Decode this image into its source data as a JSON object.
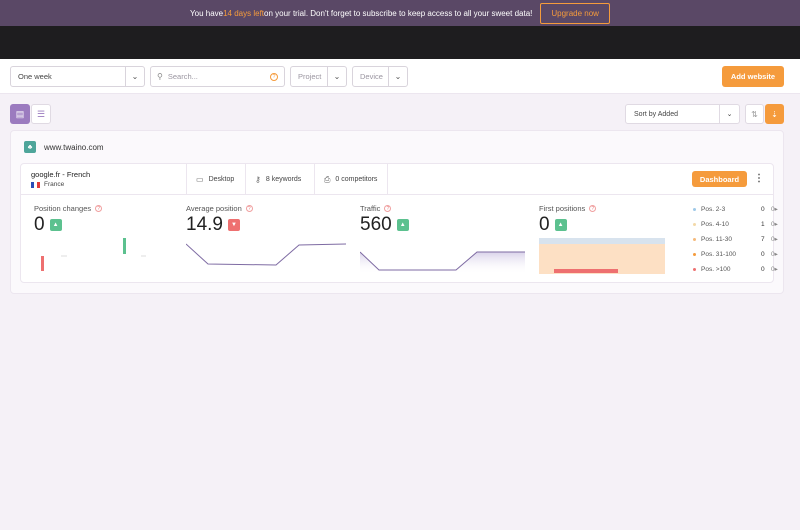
{
  "banner": {
    "text_before": "You have ",
    "days_left": "14 days left",
    "text_after": " on your trial. Don't forget to subscribe to keep access to all your sweet data!",
    "upgrade_label": "Upgrade now"
  },
  "filters": {
    "period": "One week",
    "search_placeholder": "Search...",
    "project_placeholder": "Project",
    "device_placeholder": "Device",
    "add_website_label": "Add website"
  },
  "toolbar": {
    "sort_label": "Sort by Added"
  },
  "website": {
    "domain": "www.twaino.com",
    "engine": "google.fr - French",
    "country": "France",
    "device": "Desktop",
    "keywords": "8 keywords",
    "competitors": "0 competitors",
    "dashboard_label": "Dashboard"
  },
  "metrics": {
    "position_changes": {
      "title": "Position changes",
      "value": "0",
      "trend": "up"
    },
    "average_position": {
      "title": "Average position",
      "value": "14.9",
      "trend": "down"
    },
    "traffic": {
      "title": "Traffic",
      "value": "560",
      "trend": "up"
    },
    "first_positions": {
      "title": "First positions",
      "value": "0",
      "trend": "up"
    }
  },
  "position_buckets": [
    {
      "label": "Pos. 2-3",
      "count": "0",
      "delta": "0",
      "color": "#9ec9e8"
    },
    {
      "label": "Pos. 4-10",
      "count": "1",
      "delta": "0",
      "color": "#f3d9a8"
    },
    {
      "label": "Pos. 11-30",
      "count": "7",
      "delta": "0",
      "color": "#f5b97a"
    },
    {
      "label": "Pos. 31-100",
      "count": "0",
      "delta": "0",
      "color": "#f59b3c"
    },
    {
      "label": "Pos. >100",
      "count": "0",
      "delta": "0",
      "color": "#ee7070"
    }
  ],
  "colors": {
    "accent": "#f59b3c",
    "banner_bg": "#5a4866",
    "view_active": "#9b7bbf",
    "up": "#5cc18f",
    "down": "#ee7070",
    "line": "#7e6ba3"
  }
}
